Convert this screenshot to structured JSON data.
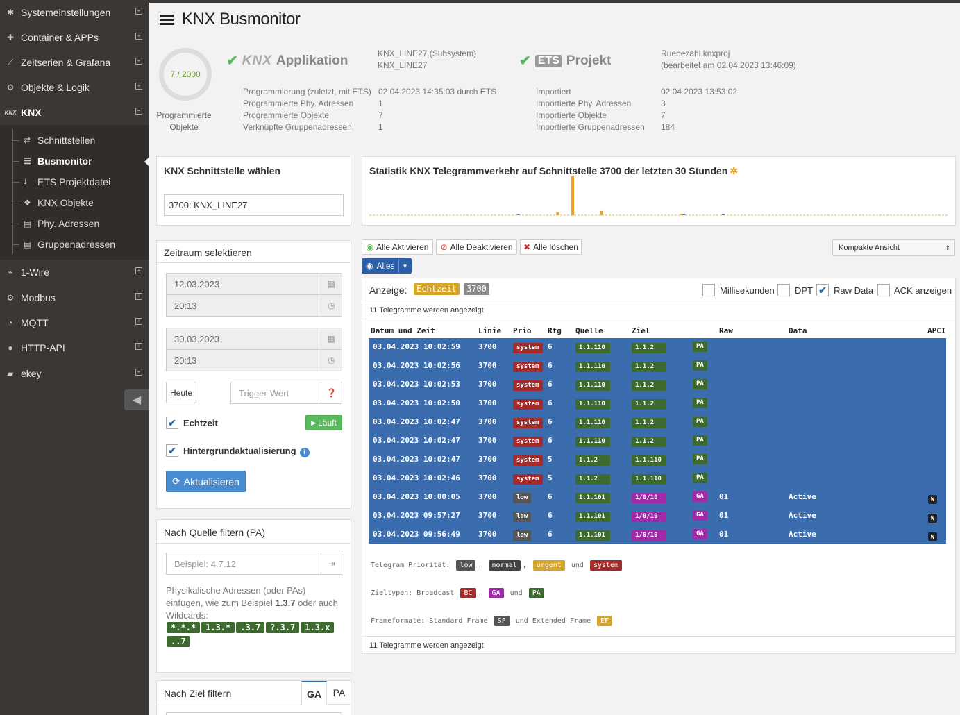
{
  "sidebar": {
    "items": [
      {
        "label": "Systemeinstellungen",
        "icon": "palette-icon"
      },
      {
        "label": "Container & APPs",
        "icon": "puzzle-icon"
      },
      {
        "label": "Zeitserien & Grafana",
        "icon": "chart-icon"
      },
      {
        "label": "Objekte & Logik",
        "icon": "gear-outline-icon"
      },
      {
        "label": "KNX",
        "icon": "knx-icon"
      },
      {
        "label": "1-Wire",
        "icon": "onewire-icon"
      },
      {
        "label": "Modbus",
        "icon": "gear-icon"
      },
      {
        "label": "MQTT",
        "icon": "rss-icon"
      },
      {
        "label": "HTTP-API",
        "icon": "globe-icon"
      },
      {
        "label": "ekey",
        "icon": "fingerprint-icon"
      }
    ],
    "sub_items": [
      {
        "label": "Schnittstellen"
      },
      {
        "label": "Busmonitor"
      },
      {
        "label": "ETS Projektdatei"
      },
      {
        "label": "KNX Objekte"
      },
      {
        "label": "Phy. Adressen"
      },
      {
        "label": "Gruppenadressen"
      }
    ]
  },
  "header": {
    "title": "KNX Busmonitor"
  },
  "gauge": {
    "text": "7 / 2000",
    "label_line1": "Programmierte",
    "label_line2": "Objekte"
  },
  "app": {
    "logo": "KNX",
    "title": "Applikation",
    "name1": "KNX_LINE27 (Subsystem)",
    "name2": "KNX_LINE27",
    "labels": [
      "Programmierung (zuletzt, mit ETS)",
      "Programmierte Phy. Adressen",
      "Programmierte Objekte",
      "Verknüpfte Gruppenadressen"
    ],
    "values": [
      "02.04.2023 14:35:03 durch ETS",
      "1",
      "7",
      "1"
    ]
  },
  "ets": {
    "logo": "ETS",
    "title": "Projekt",
    "name1": "Ruebezahl.knxproj",
    "name2": "(bearbeitet am 02.04.2023 13:46:09)",
    "labels": [
      "Importiert",
      "Importierte Phy. Adressen",
      "Importierte Objekte",
      "Importierte Gruppenadressen"
    ],
    "values": [
      "02.04.2023 13:53:02",
      "3",
      "7",
      "184"
    ]
  },
  "interface_panel": {
    "title": "KNX Schnittstelle wählen",
    "value": "3700: KNX_LINE27"
  },
  "time_panel": {
    "title": "Zeitraum selektieren",
    "from_date": "12.03.2023",
    "from_time": "20:13",
    "to_date": "30.03.2023",
    "to_time": "20:13",
    "today": "Heute",
    "trigger_placeholder": "Trigger-Wert",
    "realtime": "Echtzeit",
    "running": "Läuft",
    "background": "Hintergrundaktualisierung",
    "refresh": "Aktualisieren"
  },
  "source_filter": {
    "title": "Nach Quelle filtern (PA)",
    "placeholder": "Beispiel: 4.7.12",
    "help_pre": "Physikalische Adressen (oder PAs) einfügen, wie zum Beispiel ",
    "help_bold": "1.3.7",
    "help_post": " oder auch Wildcards:",
    "wildcards": [
      "*.*.*",
      "1.3.*",
      ".3.7",
      "?.3.7",
      "1.3.x",
      "..7"
    ]
  },
  "target_filter": {
    "title": "Nach Ziel filtern",
    "tab_ga": "GA",
    "tab_pa": "PA"
  },
  "stats": {
    "title": "Statistik KNX Telegrammverkehr auf Schnittstelle 3700 der letzten 30 Stunden",
    "bar_color": "#f0a020"
  },
  "chart_data": {
    "type": "bar",
    "title": "Statistik KNX Telegrammverkehr auf Schnittstelle 3700 der letzten 30 Stunden",
    "series": [
      {
        "values": [
          0,
          0,
          0,
          0,
          0,
          0,
          0,
          0,
          0,
          0,
          0,
          0,
          0,
          0,
          0,
          0,
          0,
          0,
          0,
          0,
          0,
          0,
          1,
          0,
          0,
          0,
          0,
          0,
          0,
          0,
          0,
          0,
          0,
          0,
          1,
          0,
          0,
          0,
          0,
          0,
          0,
          0,
          0,
          0,
          0,
          0,
          0,
          0,
          1,
          0,
          0,
          0,
          0,
          0,
          0,
          0,
          0,
          0,
          0,
          0,
          0,
          0,
          0,
          0,
          0,
          0,
          0,
          0,
          0,
          0,
          0,
          0,
          0,
          0,
          0,
          0,
          0,
          0,
          0,
          0,
          0,
          0,
          0,
          0,
          0,
          0,
          0,
          0,
          0,
          0,
          0,
          0,
          0,
          0,
          0,
          0,
          0,
          0,
          0,
          0,
          0,
          0,
          0,
          0,
          0,
          0,
          0,
          0,
          0,
          0,
          0,
          0,
          0,
          0,
          0,
          0,
          0,
          0,
          0,
          0
        ]
      },
      {
        "values": [
          0,
          0,
          0,
          0,
          0,
          0,
          0,
          0,
          0,
          0,
          0,
          0,
          0,
          0,
          0,
          0,
          0,
          0,
          0,
          0,
          0,
          0,
          0,
          0,
          0,
          0,
          0,
          0,
          0,
          0,
          0,
          0,
          0,
          0,
          0,
          0,
          0,
          0,
          0,
          0,
          0,
          0,
          0,
          0,
          0,
          0,
          0,
          0,
          0,
          0,
          0,
          0,
          1,
          0,
          0,
          0,
          0,
          0,
          0,
          0,
          0,
          0,
          0,
          0,
          0,
          0,
          0,
          0,
          0,
          0,
          0,
          0,
          0,
          0,
          0,
          0,
          0,
          0,
          0,
          0,
          0,
          0,
          0,
          0,
          0,
          0,
          0,
          0,
          0,
          0,
          0,
          0,
          0,
          0,
          0,
          0,
          0,
          0,
          0,
          0,
          0,
          0,
          0,
          0,
          0,
          0,
          0,
          0,
          0,
          0,
          0,
          0,
          0,
          0,
          0,
          0,
          0,
          0,
          0,
          0
        ]
      },
      {
        "values": [
          0,
          0,
          0,
          0,
          0,
          0,
          0,
          0,
          0,
          0,
          0,
          0,
          0,
          0,
          0,
          0,
          0,
          0,
          0,
          0,
          0,
          0,
          0,
          0,
          0,
          0,
          0,
          0,
          0,
          0,
          0,
          0,
          0,
          0,
          0,
          0,
          0,
          0,
          0,
          0,
          0,
          0,
          0,
          0,
          0,
          0,
          0,
          0,
          0,
          0,
          0,
          0,
          0,
          0,
          0,
          0,
          0,
          0,
          0,
          0,
          0,
          0,
          0,
          0,
          0,
          0,
          0,
          0,
          0,
          0,
          0,
          0,
          0,
          0,
          0,
          0,
          0,
          0,
          0,
          0,
          0,
          0,
          0,
          0,
          0,
          0,
          0,
          0,
          0,
          0,
          0,
          0,
          0,
          0,
          0,
          0,
          0,
          0,
          0,
          0,
          0,
          0,
          0,
          0,
          0,
          0,
          0,
          0,
          0,
          0,
          0,
          0,
          0,
          0,
          0,
          0,
          0,
          0,
          0,
          0
        ]
      },
      {
        "values": [
          0,
          0,
          0,
          0,
          0,
          0,
          0,
          0,
          0,
          0,
          0,
          0,
          0,
          0,
          0,
          0,
          0,
          0,
          0,
          0,
          0,
          0,
          0,
          0,
          0,
          0,
          0,
          0,
          0,
          0,
          0,
          0,
          0,
          0,
          0,
          0,
          0,
          0,
          0,
          0,
          0,
          0,
          0,
          0,
          0,
          0,
          0,
          0,
          0,
          0,
          0,
          0,
          0,
          0,
          0,
          0,
          0,
          0,
          0,
          0,
          0,
          0,
          0,
          0,
          0,
          0,
          0,
          0,
          0,
          0,
          0,
          0,
          0,
          0,
          0,
          0,
          0,
          0,
          0,
          0,
          0,
          0,
          0,
          0,
          0,
          0,
          0,
          0,
          0,
          0,
          0,
          0,
          0,
          0,
          0,
          0,
          0,
          0,
          0,
          0,
          0,
          0,
          0,
          0,
          0,
          0,
          0,
          0,
          0,
          0,
          0,
          0,
          0,
          0,
          0,
          0,
          0,
          0,
          0,
          0
        ]
      }
    ],
    "bars": [
      {
        "x": 0.255,
        "value": 1,
        "color": "#5b7fcf"
      },
      {
        "x": 0.323,
        "value": 4,
        "color": "#f0a020"
      },
      {
        "x": 0.349,
        "value": 55,
        "color": "#f0a020"
      },
      {
        "x": 0.399,
        "value": 6,
        "color": "#f0a020"
      },
      {
        "x": 0.537,
        "value": 2,
        "color": "#f0a020"
      },
      {
        "x": 0.541,
        "value": 1,
        "color": "#5b7fcf"
      },
      {
        "x": 0.609,
        "value": 1,
        "color": "#5b7fcf"
      }
    ],
    "ylim": [
      0,
      55
    ]
  },
  "toolbar": {
    "activate": "Alle Aktivieren",
    "deactivate": "Alle Deaktivieren",
    "clear": "Alle löschen",
    "view": "Kompakte Ansicht",
    "filter": "Alles"
  },
  "display": {
    "label": "Anzeige:",
    "mode": "Echtzeit",
    "interface": "3700",
    "ms": "Millisekunden",
    "dpt": "DPT",
    "raw": "Raw Data",
    "ack": "ACK anzeigen",
    "count": "11 Telegramme werden angezeigt",
    "count_bottom": "11 Telegramme werden angezeigt"
  },
  "table": {
    "headers": [
      "Datum und Zeit",
      "Linie",
      "Prio",
      "Rtg",
      "Quelle",
      "Ziel",
      "Raw",
      "Data",
      "APCI"
    ],
    "rows": [
      {
        "date": "03.04.2023 10:02:59",
        "line": "3700",
        "prio": "system",
        "rtg": "6",
        "src": "1.1.110",
        "dst": "1.1.2",
        "type": "PA",
        "raw": "",
        "data": "",
        "apci": ""
      },
      {
        "date": "03.04.2023 10:02:56",
        "line": "3700",
        "prio": "system",
        "rtg": "6",
        "src": "1.1.110",
        "dst": "1.1.2",
        "type": "PA",
        "raw": "",
        "data": "",
        "apci": ""
      },
      {
        "date": "03.04.2023 10:02:53",
        "line": "3700",
        "prio": "system",
        "rtg": "6",
        "src": "1.1.110",
        "dst": "1.1.2",
        "type": "PA",
        "raw": "",
        "data": "",
        "apci": ""
      },
      {
        "date": "03.04.2023 10:02:50",
        "line": "3700",
        "prio": "system",
        "rtg": "6",
        "src": "1.1.110",
        "dst": "1.1.2",
        "type": "PA",
        "raw": "",
        "data": "",
        "apci": ""
      },
      {
        "date": "03.04.2023 10:02:47",
        "line": "3700",
        "prio": "system",
        "rtg": "6",
        "src": "1.1.110",
        "dst": "1.1.2",
        "type": "PA",
        "raw": "",
        "data": "",
        "apci": ""
      },
      {
        "date": "03.04.2023 10:02:47",
        "line": "3700",
        "prio": "system",
        "rtg": "6",
        "src": "1.1.110",
        "dst": "1.1.2",
        "type": "PA",
        "raw": "",
        "data": "",
        "apci": ""
      },
      {
        "date": "03.04.2023 10:02:47",
        "line": "3700",
        "prio": "system",
        "rtg": "5",
        "src": "1.1.2",
        "dst": "1.1.110",
        "type": "PA",
        "raw": "",
        "data": "",
        "apci": ""
      },
      {
        "date": "03.04.2023 10:02:46",
        "line": "3700",
        "prio": "system",
        "rtg": "5",
        "src": "1.1.2",
        "dst": "1.1.110",
        "type": "PA",
        "raw": "",
        "data": "",
        "apci": ""
      },
      {
        "date": "03.04.2023 10:00:05",
        "line": "3700",
        "prio": "low",
        "rtg": "6",
        "src": "1.1.101",
        "dst": "1/0/10",
        "type": "GA",
        "raw": "01",
        "data": "Active",
        "apci": "W"
      },
      {
        "date": "03.04.2023 09:57:27",
        "line": "3700",
        "prio": "low",
        "rtg": "6",
        "src": "1.1.101",
        "dst": "1/0/10",
        "type": "GA",
        "raw": "01",
        "data": "Active",
        "apci": "W"
      },
      {
        "date": "03.04.2023 09:56:49",
        "line": "3700",
        "prio": "low",
        "rtg": "6",
        "src": "1.1.101",
        "dst": "1/0/10",
        "type": "GA",
        "raw": "01",
        "data": "Active",
        "apci": "W"
      }
    ]
  },
  "legend": {
    "prio_label": "Telegram Priorität:",
    "prio_low": "low",
    "prio_normal": "normal",
    "prio_urgent": "urgent",
    "und": "und",
    "prio_system": "system",
    "target_label": "Zieltypen: Broadcast",
    "bc": "BC",
    "ga": "GA",
    "pa": "PA",
    "frame_label": "Frameformate: Standard Frame",
    "sf": "SF",
    "frame_mid": "und Extended Frame",
    "ef": "EF"
  }
}
